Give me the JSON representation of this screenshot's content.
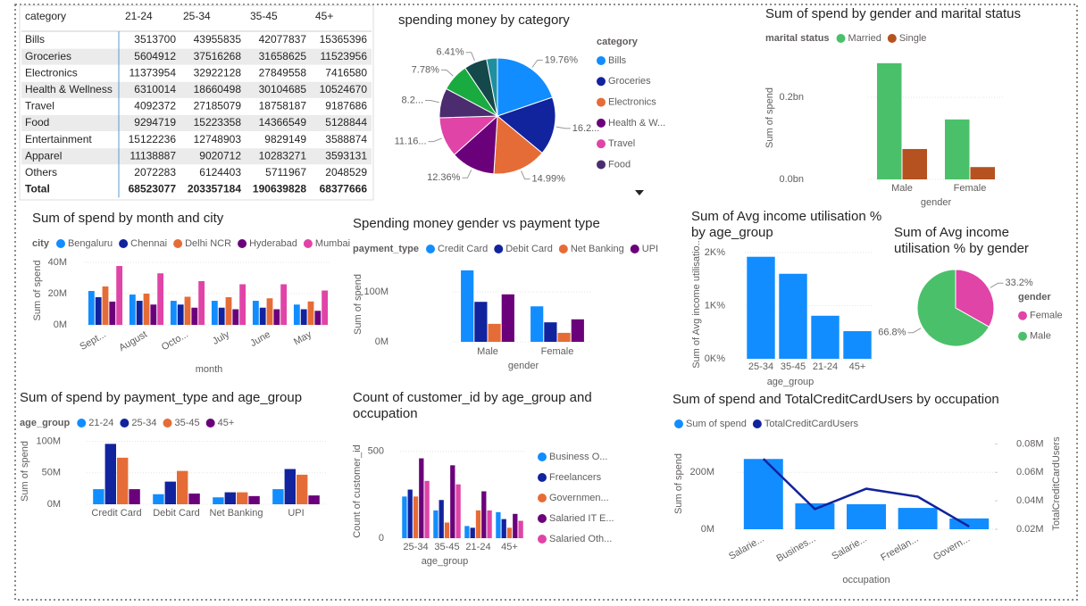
{
  "table": {
    "header": [
      "category",
      "21-24",
      "25-34",
      "35-45",
      "45+"
    ],
    "rows": [
      [
        "Bills",
        3513700,
        43955835,
        42077837,
        15365396
      ],
      [
        "Groceries",
        5604912,
        37516268,
        31658625,
        11523956
      ],
      [
        "Electronics",
        11373954,
        32922128,
        27849558,
        7416580
      ],
      [
        "Health & Wellness",
        6310014,
        18660498,
        30104685,
        10524670
      ],
      [
        "Travel",
        4092372,
        27185079,
        18758187,
        9187686
      ],
      [
        "Food",
        9294719,
        15223358,
        14366549,
        5128844
      ],
      [
        "Entertainment",
        15122236,
        12748903,
        9829149,
        3588874
      ],
      [
        "Apparel",
        11138887,
        9020712,
        10283271,
        3593131
      ],
      [
        "Others",
        2072283,
        6124403,
        5711967,
        2048529
      ]
    ],
    "total": [
      "Total",
      68523077,
      203357184,
      190639828,
      68377666
    ]
  },
  "chart_data": [
    {
      "type": "pie",
      "title": "spending money by category",
      "legend_title": "category",
      "categories": [
        "Bills",
        "Groceries",
        "Electronics",
        "Health & W...",
        "Travel",
        "Food",
        null,
        null,
        null
      ],
      "values": [
        19.76,
        16.26,
        14.99,
        12.36,
        11.16,
        8.29,
        7.78,
        6.41,
        3.01
      ],
      "value_labels": [
        "19.76%",
        "16.2...",
        "14.99%",
        "12.36%",
        "11.16...",
        "8.2...",
        "7.78%",
        "6.41%",
        null
      ],
      "colors": [
        "#118DFF",
        "#12239E",
        "#E66C37",
        "#6B007B",
        "#E044A7",
        "#4A2C6F",
        "#1AAB40",
        "#15484B",
        "#1F8FA0"
      ]
    },
    {
      "type": "bar",
      "title": "Sum of spend by gender and marital status",
      "legend_title": "marital status",
      "categories": [
        "Male",
        "Female"
      ],
      "series": [
        {
          "name": "Married",
          "color": "#4BC06A",
          "values": [
            0.283,
            0.146
          ]
        },
        {
          "name": "Single",
          "color": "#B5521F",
          "values": [
            0.074,
            0.03
          ]
        }
      ],
      "ylim": [
        0,
        0.3
      ],
      "yticks": [
        {
          "value": 0,
          "label": "0.0bn"
        },
        {
          "value": 0.2,
          "label": "0.2bn"
        }
      ],
      "ylabel": "Sum of spend",
      "xlabel": "gender",
      "grid": true
    },
    {
      "type": "bar",
      "title": "Sum of spend by month and city",
      "legend_title": "city",
      "categories": [
        "Sept...",
        "August",
        "Octo...",
        "July",
        "June",
        "May"
      ],
      "series": [
        {
          "name": "Bengaluru",
          "color": "#118DFF",
          "values": [
            21.7,
            19.4,
            15.4,
            15.4,
            15.4,
            13
          ]
        },
        {
          "name": "Chennai",
          "color": "#12239E",
          "values": [
            17.7,
            15.4,
            13,
            11,
            11,
            10
          ]
        },
        {
          "name": "Delhi NCR",
          "color": "#E66C37",
          "values": [
            24.6,
            20,
            18,
            17.7,
            17,
            15
          ]
        },
        {
          "name": "Hyderabad",
          "color": "#6B007B",
          "values": [
            14.9,
            13,
            11,
            10,
            10,
            9
          ]
        },
        {
          "name": "Mumbai",
          "color": "#E044A7",
          "values": [
            37.7,
            33,
            28,
            26,
            26,
            22
          ]
        }
      ],
      "ylim": [
        0,
        44
      ],
      "yticks": [
        {
          "value": 0,
          "label": "0M"
        },
        {
          "value": 20,
          "label": "20M"
        },
        {
          "value": 40,
          "label": "40M"
        }
      ],
      "ylabel": "Sum of spend",
      "xlabel": "month",
      "grid": true
    },
    {
      "type": "bar",
      "title": "Spending money gender vs payment type",
      "legend_title": "payment_type",
      "categories": [
        "Male",
        "Female"
      ],
      "series": [
        {
          "name": "Credit Card",
          "color": "#118DFF",
          "values": [
            143,
            71
          ]
        },
        {
          "name": "Debit Card",
          "color": "#12239E",
          "values": [
            80,
            39
          ]
        },
        {
          "name": "Net Banking",
          "color": "#E66C37",
          "values": [
            36,
            18
          ]
        },
        {
          "name": "UPI",
          "color": "#6B007B",
          "values": [
            95,
            45
          ]
        }
      ],
      "ylim": [
        0,
        150
      ],
      "yticks": [
        {
          "value": 0,
          "label": "0M"
        },
        {
          "value": 100,
          "label": "100M"
        }
      ],
      "ylabel": "Sum of spend",
      "xlabel": "gender",
      "grid": true
    },
    {
      "type": "bar",
      "title": "Sum of Avg income utilisation % by age_group",
      "categories": [
        "25-34",
        "35-45",
        "21-24",
        "45+"
      ],
      "series": [
        {
          "color": "#118DFF",
          "values": [
            1.92,
            1.6,
            0.81,
            0.52
          ]
        }
      ],
      "ylim": [
        0,
        2.1
      ],
      "yticks": [
        {
          "value": 0,
          "label": "0K%"
        },
        {
          "value": 1,
          "label": "1K%"
        },
        {
          "value": 2,
          "label": "2K%"
        }
      ],
      "ylabel": "Sum of Avg income utilisatio...",
      "xlabel": "age_group",
      "grid": true
    },
    {
      "type": "pie",
      "title": "Sum of Avg income utilisation % by gender",
      "legend_title": "gender",
      "categories": [
        "Female",
        "Male"
      ],
      "values": [
        33.2,
        66.8
      ],
      "value_labels": [
        "33.2%",
        "66.8%"
      ],
      "colors": [
        "#E044A7",
        "#4BC06A"
      ]
    },
    {
      "type": "bar",
      "title": "Sum of spend by payment_type and age_group",
      "legend_title": "age_group",
      "categories": [
        "Credit Card",
        "Debit Card",
        "Net Banking",
        "UPI"
      ],
      "series": [
        {
          "name": "21-24",
          "color": "#118DFF",
          "values": [
            24,
            16,
            11,
            24
          ]
        },
        {
          "name": "25-34",
          "color": "#12239E",
          "values": [
            96,
            36,
            19,
            56
          ]
        },
        {
          "name": "35-45",
          "color": "#E66C37",
          "values": [
            74,
            53,
            19,
            47
          ]
        },
        {
          "name": "45+",
          "color": "#6B007B",
          "values": [
            24,
            17,
            13,
            14
          ]
        }
      ],
      "ylim": [
        0,
        105
      ],
      "yticks": [
        {
          "value": 0,
          "label": "0M"
        },
        {
          "value": 50,
          "label": "50M"
        },
        {
          "value": 100,
          "label": "100M"
        }
      ],
      "ylabel": "Sum of spend",
      "grid": true
    },
    {
      "type": "bar",
      "title": "Count of customer_id by age_group and occupation",
      "legend": "right",
      "categories": [
        "25-34",
        "35-45",
        "21-24",
        "45+"
      ],
      "series": [
        {
          "name": "Business O...",
          "color": "#118DFF",
          "values": [
            240,
            160,
            70,
            150
          ]
        },
        {
          "name": "Freelancers",
          "color": "#12239E",
          "values": [
            280,
            220,
            60,
            110
          ]
        },
        {
          "name": "Governmen...",
          "color": "#E66C37",
          "values": [
            240,
            90,
            160,
            60
          ]
        },
        {
          "name": "Salaried IT E...",
          "color": "#6B007B",
          "values": [
            460,
            420,
            270,
            140
          ]
        },
        {
          "name": "Salaried Oth...",
          "color": "#E044A7",
          "values": [
            330,
            310,
            160,
            100
          ]
        }
      ],
      "ylim": [
        0,
        540
      ],
      "yticks": [
        0,
        500
      ],
      "ylabel": "Count of customer_id",
      "xlabel": "age_group",
      "grid": true
    },
    {
      "type": "combo",
      "title": "Sum of spend and TotalCreditCardUsers by occupation",
      "categories": [
        "Salarie...",
        "Busines...",
        "Salarie...",
        "Freelan...",
        "Govern..."
      ],
      "series": [
        {
          "name": "Sum of spend",
          "color": "#118DFF",
          "kind": "bar",
          "values": [
            247,
            91,
            88,
            75,
            38
          ]
        },
        {
          "name": "TotalCreditCardUsers",
          "color": "#12239E",
          "kind": "line",
          "axis": "y2",
          "values": [
            0.0695,
            0.0342,
            0.0485,
            0.0429,
            0.0219
          ]
        }
      ],
      "ylim": [
        0,
        320
      ],
      "yticks": [
        {
          "value": 0,
          "label": "0M"
        },
        {
          "value": 200,
          "label": "200M"
        }
      ],
      "y2lim": [
        0.02,
        0.084
      ],
      "y2ticks": [
        {
          "value": 0.02,
          "label": "0.02M"
        },
        {
          "value": 0.04,
          "label": "0.04M"
        },
        {
          "value": 0.06,
          "label": "0.06M"
        },
        {
          "value": 0.08,
          "label": "0.08M"
        }
      ],
      "ylabel": "Sum of spend",
      "y2label": "TotalCreditCardUsers",
      "xlabel": "occupation",
      "grid": true
    }
  ]
}
